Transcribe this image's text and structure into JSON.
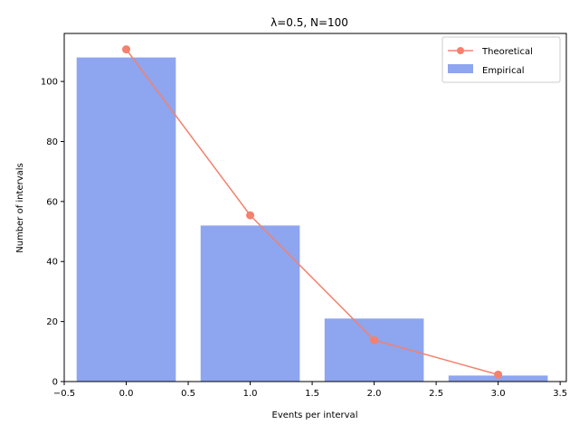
{
  "chart_data": {
    "type": "bar",
    "title": "λ=0.5, N=100",
    "xlabel": "Events per interval",
    "ylabel": "Number of intervals",
    "xlim": [
      -0.5,
      3.55
    ],
    "ylim": [
      0,
      116
    ],
    "xticks": [
      -0.5,
      0.0,
      0.5,
      1.0,
      1.5,
      2.0,
      2.5,
      3.0,
      3.5
    ],
    "xtick_labels": [
      "−0.5",
      "0.0",
      "0.5",
      "1.0",
      "1.5",
      "2.0",
      "2.5",
      "3.0",
      "3.5"
    ],
    "yticks": [
      0,
      20,
      40,
      60,
      80,
      100
    ],
    "ytick_labels": [
      "0",
      "20",
      "40",
      "60",
      "80",
      "100"
    ],
    "grid": false,
    "legend_position": "top-right",
    "series": [
      {
        "name": "Empirical",
        "kind": "bar",
        "color": "#8ea5ef",
        "x": [
          0,
          1,
          2,
          3
        ],
        "values": [
          108,
          52,
          21,
          2
        ],
        "bar_width": 0.8
      },
      {
        "name": "Theoretical",
        "kind": "line",
        "color": "#f4806d",
        "marker": "circle",
        "x": [
          0,
          1,
          2,
          3
        ],
        "values": [
          110.7,
          55.4,
          13.8,
          2.3
        ]
      }
    ]
  }
}
